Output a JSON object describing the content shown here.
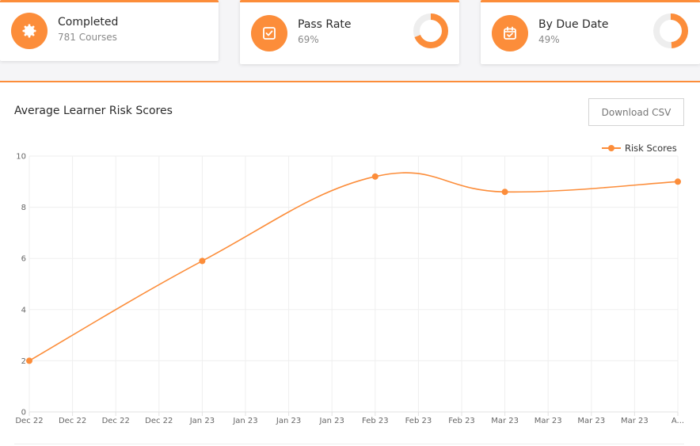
{
  "cards": [
    {
      "title": "Completed",
      "subtitle": "781 Courses",
      "icon": "gear-badge-icon"
    },
    {
      "title": "Pass Rate",
      "subtitle": "69%",
      "icon": "checkbox-icon",
      "donut_fraction": 0.69
    },
    {
      "title": "By Due Date",
      "subtitle": "49%",
      "icon": "calendar-check-icon",
      "donut_fraction": 0.49
    }
  ],
  "panel": {
    "title": "Average Learner Risk Scores",
    "download_label": "Download CSV"
  },
  "colors": {
    "accent": "#fc8d3a"
  },
  "chart_data": {
    "type": "line",
    "ylim": [
      0,
      10
    ],
    "y_ticks": [
      "0",
      "2",
      "4",
      "6",
      "8",
      "10"
    ],
    "x_tick_labels": [
      "Dec 22",
      "Dec 22",
      "Dec 22",
      "Dec 22",
      "Jan 23",
      "Jan 23",
      "Jan 23",
      "Jan 23",
      "Feb 23",
      "Feb 23",
      "Feb 23",
      "Mar 23",
      "Mar 23",
      "Mar 23",
      "Mar 23",
      "A..."
    ],
    "legend": "top-right",
    "grid": true,
    "series": [
      {
        "name": "Risk Scores",
        "x": [
          "Dec 22",
          "Jan 23",
          "Feb 23",
          "Mar 23",
          "A..."
        ],
        "values": [
          2.0,
          5.9,
          9.2,
          8.6,
          9.0
        ]
      }
    ]
  }
}
